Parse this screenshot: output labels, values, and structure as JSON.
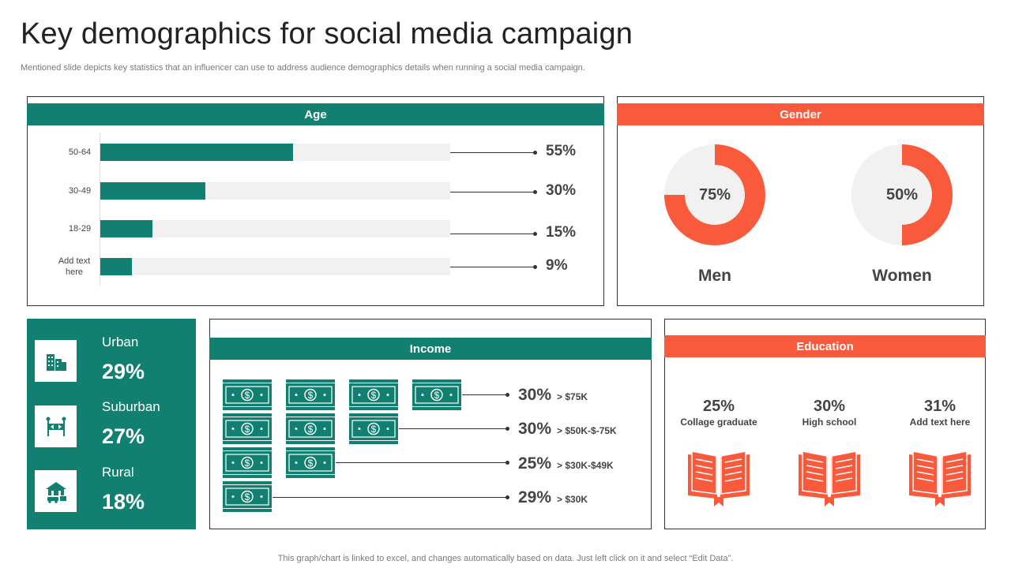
{
  "page": {
    "title": "Key demographics for social media campaign",
    "subtitle": "Mentioned slide depicts key statistics that an influencer can use to address audience demographics details when running a social media campaign.",
    "footer": "This graph/chart is linked to excel,  and changes automatically based on data. Just left click on it and select “Edit Data”."
  },
  "colors": {
    "teal": "#128070",
    "orange": "#f95a3c",
    "track": "#f1f1f1"
  },
  "age": {
    "header": "Age"
  },
  "gender": {
    "header": "Gender"
  },
  "income": {
    "header": "Income"
  },
  "education": {
    "header": "Education"
  },
  "location": {
    "items": [
      {
        "name": "Urban",
        "value_label": "29%",
        "icon": "city-buildings-icon"
      },
      {
        "name": "Suburban",
        "value_label": "27%",
        "icon": "road-sign-icon"
      },
      {
        "name": "Rural",
        "value_label": "18%",
        "icon": "farmhouse-icon"
      }
    ]
  },
  "chart_data": [
    {
      "type": "bar",
      "title": "Age",
      "orientation": "horizontal",
      "categories": [
        "50-64",
        "30-49",
        "18-29",
        "Add text here"
      ],
      "values": [
        55,
        30,
        15,
        9
      ],
      "value_labels": [
        "55%",
        "30%",
        "15%",
        "9%"
      ],
      "xlim": [
        0,
        100
      ]
    },
    {
      "type": "pie",
      "title": "Gender",
      "donuts": [
        {
          "label": "Men",
          "value": 75,
          "value_label": "75%"
        },
        {
          "label": "Women",
          "value": 50,
          "value_label": "50%"
        }
      ]
    },
    {
      "type": "bar",
      "title": "Income",
      "pictograph": "money-bill-icon",
      "categories": [
        "> $75K",
        "> $50K-$-75K",
        "> $30K-$49K",
        "> $30K"
      ],
      "values": [
        30,
        30,
        25,
        29
      ],
      "value_labels": [
        "30%",
        "30%",
        "25%",
        "29%"
      ],
      "icon_counts": [
        4,
        3,
        2,
        1
      ]
    },
    {
      "type": "table",
      "title": "Education",
      "categories": [
        "Collage graduate",
        "High school",
        "Add text here"
      ],
      "values": [
        25,
        30,
        31
      ],
      "value_labels": [
        "25%",
        "30%",
        "31%"
      ],
      "icon": "open-book-icon"
    }
  ]
}
